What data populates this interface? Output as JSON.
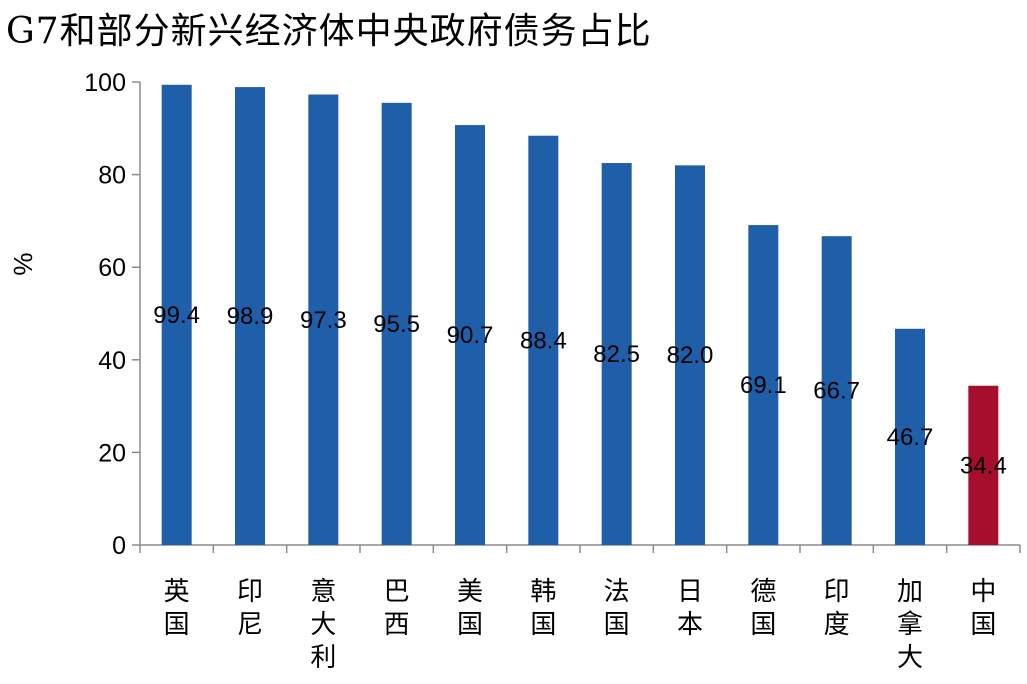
{
  "chart_data": {
    "type": "bar",
    "title": "G7和部分新兴经济体中央政府债务占比",
    "ylabel": "%",
    "xlabel": "",
    "ylim": [
      0,
      100
    ],
    "yticks": [
      0,
      20,
      40,
      60,
      80,
      100
    ],
    "grid": false,
    "legend": "none",
    "categories": [
      "英国",
      "印尼",
      "意大利",
      "巴西",
      "美国",
      "韩国",
      "法国",
      "日本",
      "德国",
      "印度",
      "加拿大",
      "中国"
    ],
    "values": [
      99.4,
      98.9,
      97.3,
      95.5,
      90.7,
      88.4,
      82.5,
      82.0,
      69.1,
      66.7,
      46.7,
      34.4
    ],
    "data_labels": [
      "99.4",
      "98.9",
      "97.3",
      "95.5",
      "90.7",
      "88.4",
      "82.5",
      "82.0",
      "69.1",
      "66.7",
      "46.7",
      "34.4"
    ],
    "colors": {
      "default_bar": "#1f5faa",
      "highlight_bar": "#a50f2d",
      "axis": "#8c8c8c"
    },
    "highlight_category": "中国"
  }
}
